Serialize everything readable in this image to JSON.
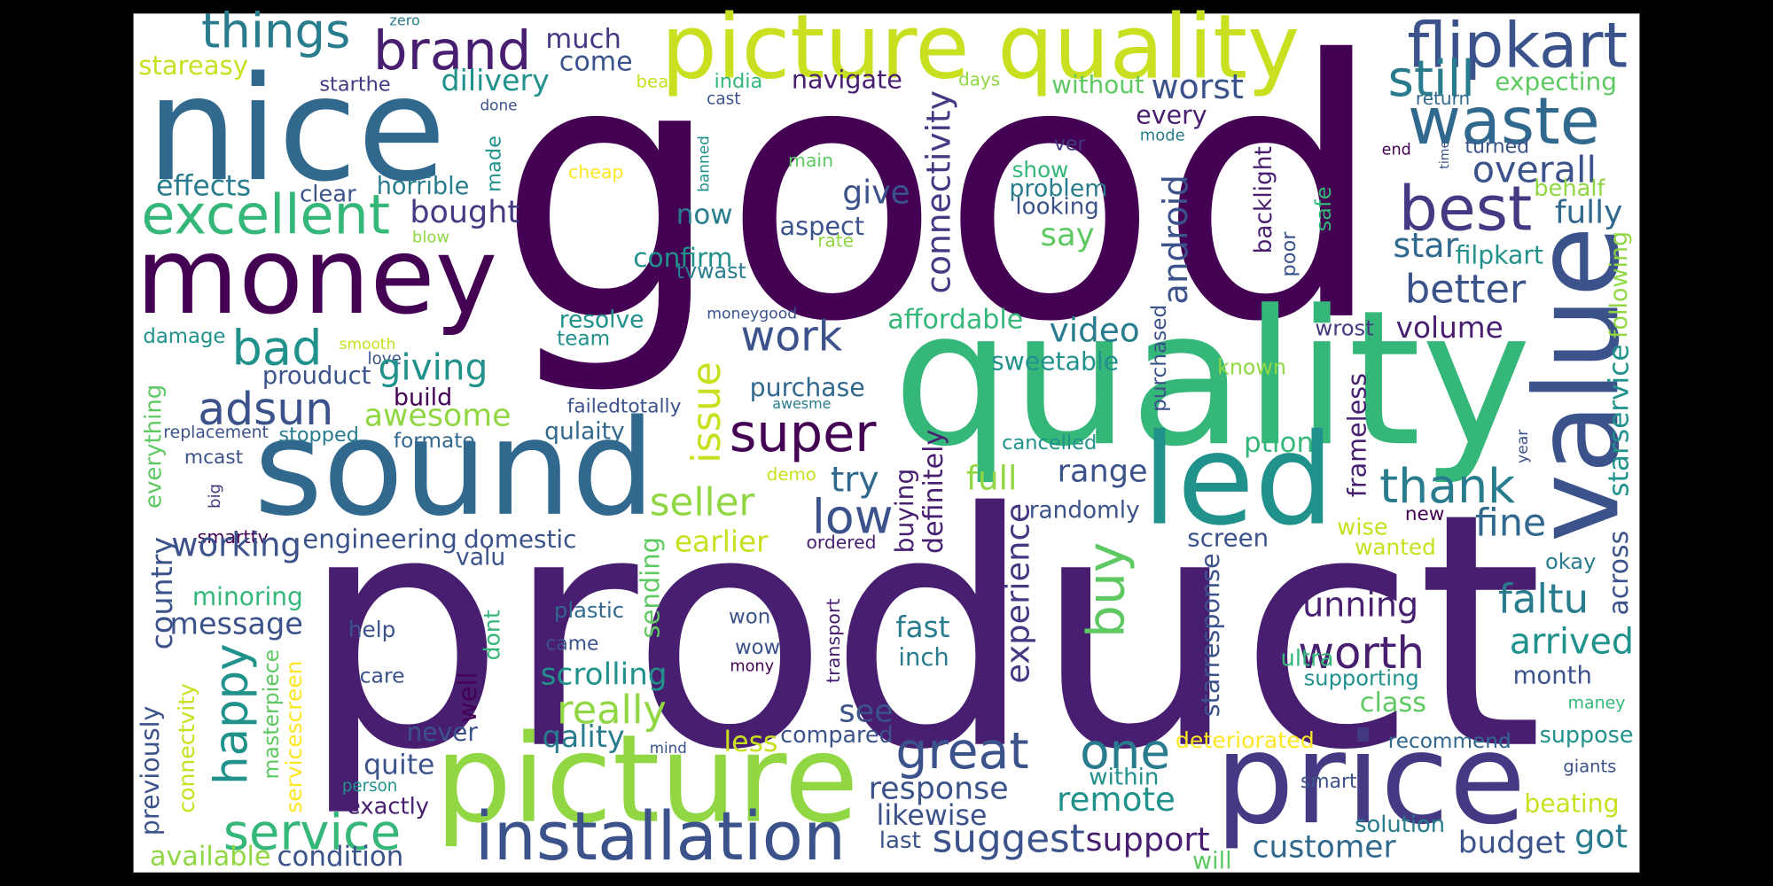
{
  "words": [
    "good",
    "product",
    "quality",
    "nice",
    "money",
    "sound",
    "led",
    "value",
    "picture quality",
    "picture",
    "price",
    "flipkart",
    "brand",
    "things",
    "much",
    "come",
    "zero",
    "stareasy",
    "navigate",
    "india",
    "beat",
    "cast",
    "days",
    "without",
    "worst",
    "still",
    "expecting",
    "return",
    "dilivery",
    "starthe",
    "done",
    "excellent",
    "effects",
    "clear",
    "horrible",
    "made",
    "cheap",
    "banned",
    "main",
    "bought",
    "blow",
    "give",
    "aspect",
    "rate",
    "connectivity",
    "show",
    "ver",
    "problem",
    "looking",
    "say",
    "every",
    "mode",
    "android",
    "waste",
    "best",
    "overall",
    "end",
    "time",
    "turned",
    "behalf",
    "fully",
    "backlight",
    "poor",
    "safe",
    "star",
    "filpkart",
    "following",
    "better",
    "volume",
    "starservice",
    "wrost",
    "purchased",
    "moneygood",
    "affordable",
    "known",
    "video",
    "sweetable",
    "love",
    "smooth",
    "damage",
    "bad",
    "prouduct",
    "giving",
    "build",
    "adsun",
    "awesome",
    "replacement",
    "stopped",
    "formate",
    "failedtotally",
    "qulaity",
    "mcast",
    "everything",
    "big",
    "smarttv",
    "resolve",
    "team",
    "confirm",
    "tvwast",
    "now",
    "work",
    "issue",
    "purchase",
    "awesme",
    "super",
    "seller",
    "demo",
    "try",
    "low",
    "earlier",
    "ordered",
    "buying",
    "definitely",
    "full",
    "cancelled",
    "randomly",
    "range",
    "thank",
    "ption",
    "frameless",
    "year",
    "fine",
    "new",
    "screen",
    "wise",
    "wanted",
    "okay",
    "across",
    "experience",
    "buy",
    "faltu",
    "running",
    "arrived",
    "starresponse",
    "worth",
    "ultra",
    "month",
    "supporting",
    "class",
    "maney",
    "recommend",
    "suppose",
    "deteriorated",
    "giants",
    "smart",
    "within",
    "beating",
    "solution",
    "got",
    "budget",
    "customer",
    "will",
    "support",
    "suggest",
    "last",
    "likewise",
    "response",
    "great",
    "one",
    "remote",
    "compared",
    "see",
    "mind",
    "less",
    "qality",
    "really",
    "scrolling",
    "came",
    "wow",
    "mony",
    "won",
    "plastic",
    "transport",
    "fast",
    "inch",
    "installation",
    "service",
    "available",
    "condition",
    "exactly",
    "person",
    "quite",
    "never",
    "well",
    "dont",
    "sending",
    "message",
    "minoring",
    "working",
    "engineering",
    "domestic",
    "valu",
    "country",
    "happy",
    "masterpiece",
    "servicescreen",
    "connectvity",
    "previously",
    "help",
    "care"
  ]
}
